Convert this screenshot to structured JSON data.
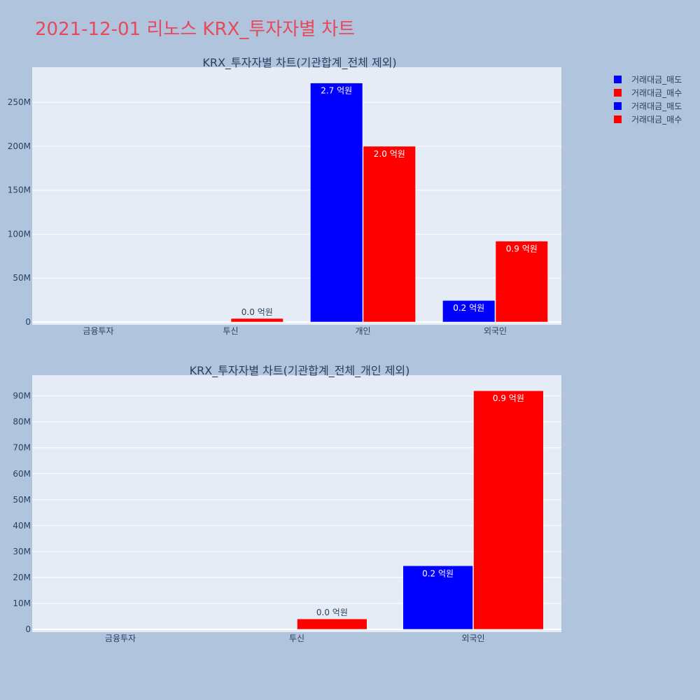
{
  "title": "2021-12-01 리노스 KRX_투자자별 차트",
  "colors": {
    "background": "#b0c4de",
    "plot_bg": "#e5ecf6",
    "title": "#e8495a",
    "sell": "#0000ff",
    "buy": "#ff0000"
  },
  "legend": {
    "placement": "top-right",
    "items": [
      {
        "name": "거래대금_매도",
        "color": "#0000ff"
      },
      {
        "name": "거래대금_매수",
        "color": "#ff0000"
      },
      {
        "name": "거래대금_매도",
        "color": "#0000ff"
      },
      {
        "name": "거래대금_매수",
        "color": "#ff0000"
      }
    ]
  },
  "chart_data": [
    {
      "type": "bar",
      "title": "KRX_투자자별 차트(기관합계_전체 제외)",
      "categories": [
        "금융투자",
        "투신",
        "개인",
        "외국인"
      ],
      "series": [
        {
          "name": "거래대금_매도",
          "color": "#0000ff",
          "values": [
            0,
            0,
            272000000,
            24500000
          ],
          "labels": [
            "",
            "",
            "2.7 억원",
            "0.2 억원"
          ]
        },
        {
          "name": "거래대금_매수",
          "color": "#ff0000",
          "values": [
            0,
            4000000,
            200000000,
            92000000
          ],
          "labels": [
            "",
            "0.0 억원",
            "2.0 억원",
            "0.9 억원"
          ]
        }
      ],
      "ylim": [
        0,
        290000000
      ],
      "yticks": [
        0,
        50000000,
        100000000,
        150000000,
        200000000,
        250000000
      ],
      "yticklabels": [
        "0",
        "50M",
        "100M",
        "150M",
        "200M",
        "250M"
      ],
      "grid": true
    },
    {
      "type": "bar",
      "title": "KRX_투자자별 차트(기관합계_전체_개인 제외)",
      "categories": [
        "금융투자",
        "투신",
        "외국인"
      ],
      "series": [
        {
          "name": "거래대금_매도",
          "color": "#0000ff",
          "values": [
            0,
            0,
            24500000
          ],
          "labels": [
            "",
            "",
            "0.2 억원"
          ]
        },
        {
          "name": "거래대금_매수",
          "color": "#ff0000",
          "values": [
            0,
            4000000,
            92000000
          ],
          "labels": [
            "",
            "0.0 억원",
            "0.9 억원"
          ]
        }
      ],
      "ylim": [
        0,
        98000000
      ],
      "yticks": [
        0,
        10000000,
        20000000,
        30000000,
        40000000,
        50000000,
        60000000,
        70000000,
        80000000,
        90000000
      ],
      "yticklabels": [
        "0",
        "10M",
        "20M",
        "30M",
        "40M",
        "50M",
        "60M",
        "70M",
        "80M",
        "90M"
      ],
      "grid": true
    }
  ]
}
